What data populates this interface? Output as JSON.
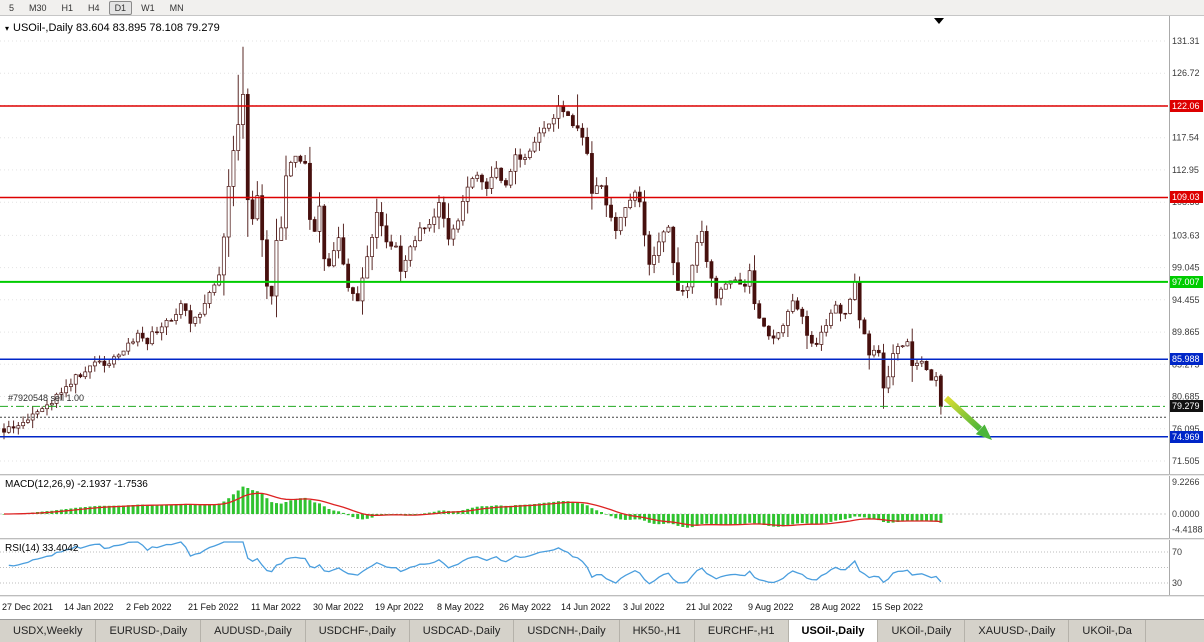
{
  "toolbar": {
    "timeframes": [
      "5",
      "M30",
      "H1",
      "H4",
      "D1",
      "W1",
      "MN"
    ],
    "active": "D1"
  },
  "chart": {
    "title_icon": "▾",
    "title": "USOil-,Daily 83.604 83.895 78.108 79.279",
    "order_label": "#7920548 sell 1.00",
    "y_ticks": [
      "131.31",
      "126.72",
      "122.13",
      "117.54",
      "112.95",
      "108.36",
      "103.63",
      "99.045",
      "94.455",
      "89.865",
      "85.275",
      "80.685",
      "76.095",
      "71.505"
    ],
    "h_lines": [
      {
        "price": 122.06,
        "label": "122.06",
        "color": "#dd0000",
        "style": "solid",
        "width": 1.5
      },
      {
        "price": 109.03,
        "label": "109.03",
        "color": "#dd0000",
        "style": "solid",
        "width": 1.5
      },
      {
        "price": 97.007,
        "label": "97.007",
        "color": "#00cc00",
        "style": "solid",
        "width": 2
      },
      {
        "price": 85.988,
        "label": "85.988",
        "color": "#0026c8",
        "style": "solid",
        "width": 1.5
      },
      {
        "price": 79.279,
        "label": "79.279",
        "color": "#22aa22",
        "style": "dashdot",
        "width": 1,
        "badge_color": "#111111"
      },
      {
        "price": 77.75,
        "label": null,
        "color": "#444444",
        "style": "dot",
        "width": 1
      },
      {
        "price": 74.969,
        "label": "74.969",
        "color": "#0026c8",
        "style": "solid",
        "width": 1.5
      }
    ],
    "x_labels": [
      "27 Dec 2021",
      "14 Jan 2022",
      "2 Feb 2022",
      "21 Feb 2022",
      "11 Mar 2022",
      "30 Mar 2022",
      "19 Apr 2022",
      "8 May 2022",
      "26 May 2022",
      "14 Jun 2022",
      "3 Jul 2022",
      "21 Jul 2022",
      "9 Aug 2022",
      "28 Aug 2022",
      "15 Sep 2022"
    ]
  },
  "macd": {
    "label": "MACD(12,26,9) -2.1937 -1.7536",
    "ticks": [
      "9.2266",
      "0.0000",
      "-4.4188"
    ]
  },
  "rsi": {
    "label": "RSI(14) 33.4042",
    "ticks": [
      "70",
      "30"
    ],
    "levels": [
      70,
      50,
      30
    ]
  },
  "tabs": {
    "items": [
      "USDX,Weekly",
      "EURUSD-,Daily",
      "AUDUSD-,Daily",
      "USDCHF-,Daily",
      "USDCAD-,Daily",
      "USDCNH-,Daily",
      "HK50-,H1",
      "EURCHF-,H1",
      "USOil-,Daily",
      "UKOil-,Daily",
      "XAUUSD-,Daily",
      "UKOil-,Da"
    ],
    "active_index": 8
  },
  "colors": {
    "bull": "#ffffff",
    "bear": "#47100e",
    "candle_outline": "#47100e",
    "grid": "#e3e3e3",
    "axis_line": "#aaaaaa",
    "macd_histogram": "#2fc32f",
    "macd_signal": "#dd2222",
    "rsi_line": "#4a9ede",
    "arrow_start": "#dede30",
    "arrow_end": "#4cb53a"
  },
  "chart_data": {
    "type": "candlestick",
    "symbol": "USOil-",
    "timeframe": "Daily",
    "date_range": [
      "27 Dec 2021",
      "23 Sep 2022"
    ],
    "num_candles": 197,
    "visible_price_range": [
      71.505,
      131.31
    ],
    "last_candle": {
      "open": 83.604,
      "high": 83.895,
      "low": 78.108,
      "close": 79.279
    },
    "levels": {
      "resistance": [
        122.06,
        109.03
      ],
      "pivot_green": 97.007,
      "support_blue": [
        85.988,
        74.969
      ],
      "current_bid": 79.279
    },
    "indicators": {
      "macd": {
        "fast": 12,
        "slow": 26,
        "signal": 9,
        "last_values": [
          -2.1937,
          -1.7536
        ],
        "scale": [
          9.2266,
          0.0,
          -4.4188
        ]
      },
      "rsi": {
        "period": 14,
        "last_value": 33.4042,
        "levels": [
          70,
          30
        ]
      }
    },
    "close_anchors": [
      [
        0,
        75.6
      ],
      [
        2,
        76.2
      ],
      [
        4,
        77.0
      ],
      [
        6,
        78.2
      ],
      [
        9,
        79.5
      ],
      [
        11,
        81.0
      ],
      [
        13,
        82.1
      ],
      [
        15,
        83.8
      ],
      [
        17,
        84.2
      ],
      [
        19,
        85.6
      ],
      [
        21,
        85.1
      ],
      [
        24,
        86.6
      ],
      [
        26,
        88.3
      ],
      [
        28,
        89.7
      ],
      [
        30,
        88.2
      ],
      [
        31,
        89.9
      ],
      [
        33,
        90.6
      ],
      [
        35,
        91.5
      ],
      [
        37,
        93.9
      ],
      [
        39,
        91.1
      ],
      [
        41,
        92.4
      ],
      [
        43,
        95.5
      ],
      [
        45,
        98.0
      ],
      [
        46,
        103.4
      ],
      [
        47,
        110.6
      ],
      [
        48,
        115.7
      ],
      [
        49,
        119.4
      ],
      [
        50,
        123.7
      ],
      [
        51,
        108.7
      ],
      [
        52,
        106.0
      ],
      [
        53,
        109.3
      ],
      [
        54,
        103.0
      ],
      [
        55,
        96.4
      ],
      [
        56,
        95.0
      ],
      [
        57,
        102.9
      ],
      [
        58,
        104.7
      ],
      [
        59,
        112.1
      ],
      [
        61,
        114.9
      ],
      [
        63,
        113.9
      ],
      [
        64,
        105.9
      ],
      [
        65,
        104.2
      ],
      [
        66,
        107.8
      ],
      [
        67,
        100.3
      ],
      [
        68,
        99.3
      ],
      [
        70,
        103.3
      ],
      [
        72,
        96.2
      ],
      [
        74,
        94.3
      ],
      [
        76,
        100.6
      ],
      [
        78,
        106.9
      ],
      [
        80,
        102.7
      ],
      [
        82,
        102.1
      ],
      [
        83,
        98.5
      ],
      [
        85,
        102.0
      ],
      [
        87,
        104.7
      ],
      [
        89,
        105.2
      ],
      [
        91,
        108.3
      ],
      [
        93,
        103.1
      ],
      [
        95,
        105.7
      ],
      [
        97,
        110.5
      ],
      [
        99,
        112.2
      ],
      [
        101,
        110.3
      ],
      [
        103,
        113.2
      ],
      [
        105,
        110.8
      ],
      [
        107,
        115.1
      ],
      [
        109,
        114.7
      ],
      [
        111,
        116.9
      ],
      [
        113,
        118.9
      ],
      [
        115,
        120.3
      ],
      [
        116,
        122.1
      ],
      [
        118,
        120.7
      ],
      [
        120,
        118.9
      ],
      [
        121,
        117.6
      ],
      [
        122,
        115.3
      ],
      [
        123,
        109.6
      ],
      [
        125,
        110.7
      ],
      [
        127,
        106.2
      ],
      [
        128,
        104.3
      ],
      [
        130,
        107.6
      ],
      [
        132,
        109.8
      ],
      [
        133,
        108.4
      ],
      [
        135,
        99.5
      ],
      [
        137,
        102.7
      ],
      [
        139,
        104.8
      ],
      [
        141,
        95.8
      ],
      [
        143,
        96.3
      ],
      [
        145,
        102.6
      ],
      [
        146,
        104.2
      ],
      [
        147,
        99.9
      ],
      [
        149,
        94.7
      ],
      [
        151,
        96.7
      ],
      [
        153,
        97.3
      ],
      [
        155,
        96.4
      ],
      [
        156,
        98.6
      ],
      [
        157,
        93.9
      ],
      [
        159,
        90.7
      ],
      [
        161,
        89.0
      ],
      [
        163,
        90.8
      ],
      [
        165,
        94.3
      ],
      [
        167,
        92.1
      ],
      [
        168,
        89.4
      ],
      [
        170,
        88.1
      ],
      [
        172,
        90.8
      ],
      [
        174,
        93.7
      ],
      [
        176,
        92.5
      ],
      [
        178,
        97.0
      ],
      [
        179,
        91.6
      ],
      [
        180,
        89.6
      ],
      [
        181,
        86.6
      ],
      [
        183,
        86.9
      ],
      [
        184,
        81.9
      ],
      [
        185,
        83.5
      ],
      [
        186,
        86.8
      ],
      [
        187,
        87.8
      ],
      [
        189,
        88.5
      ],
      [
        190,
        85.1
      ],
      [
        192,
        85.7
      ],
      [
        193,
        84.5
      ],
      [
        194,
        83.0
      ],
      [
        195,
        83.5
      ],
      [
        196,
        79.3
      ]
    ],
    "overrides": [
      {
        "i": 49,
        "h": 126.5
      },
      {
        "i": 50,
        "h": 130.5
      },
      {
        "i": 120,
        "h": 123.7
      },
      {
        "i": 196,
        "o": 83.604,
        "h": 83.895,
        "l": 78.108,
        "c": 79.279
      }
    ]
  }
}
